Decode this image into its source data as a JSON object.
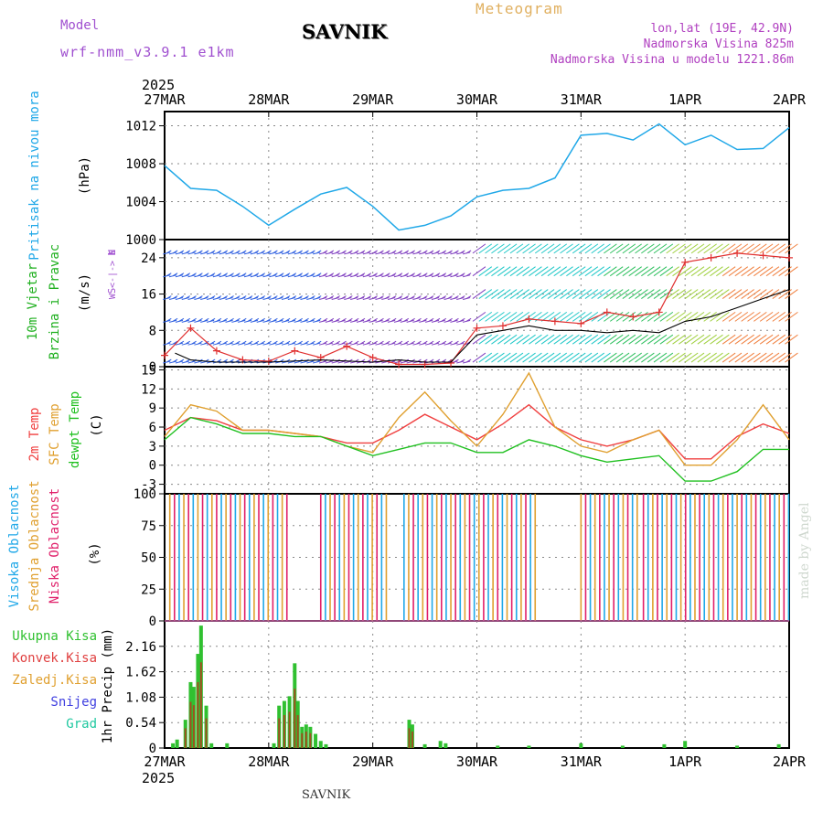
{
  "header": {
    "model_label": "Model",
    "model_name": "wrf-nmm_v3.9.1 e1km",
    "station": "SAVNIK",
    "meteogram": "Meteogram",
    "lonlat": "lon,lat (19E, 42.9N)",
    "elevation": "Nadmorska Visina 825m",
    "elevation_model": "Nadmorska Visina u modelu 1221.86m"
  },
  "footer": {
    "station": "SAVNIK",
    "made_by": "made by Angel"
  },
  "x_axis": {
    "year": "2025",
    "ticks": [
      "27MAR",
      "28MAR",
      "29MAR",
      "30MAR",
      "31MAR",
      "1APR",
      "2APR"
    ]
  },
  "colors": {
    "pressure": "#20a8e8",
    "temp2m": "#f04040",
    "sfc_temp": "#e0a030",
    "dewpt": "#20c020",
    "high_cloud": "#20a8e8",
    "mid_cloud": "#e0a030",
    "low_cloud": "#e0206a",
    "total_precip": "#30c030",
    "conv_precip": "#e04040",
    "snow": "#4040e0"
  },
  "chart_data": [
    {
      "type": "line",
      "panel": "pressure",
      "ylabel_main": "Pritisak na nivou mora",
      "ylabel_unit": "(hPa)",
      "ylim": [
        1000,
        1013.5
      ],
      "yticks": [
        "1000",
        "1004",
        "1008",
        "1012"
      ],
      "grid": true,
      "x_days": [
        0,
        0.25,
        0.5,
        0.75,
        1,
        1.25,
        1.5,
        1.75,
        2,
        2.25,
        2.5,
        2.75,
        3,
        3.25,
        3.5,
        3.75,
        4,
        4.25,
        4.5,
        4.75,
        5,
        5.25,
        5.5,
        5.75,
        6
      ],
      "values": [
        1007.8,
        1005.4,
        1005.2,
        1003.5,
        1001.5,
        1003.2,
        1004.8,
        1005.5,
        1003.5,
        1001.0,
        1001.5,
        1002.5,
        1004.5,
        1005.2,
        1005.4,
        1006.5,
        1011.0,
        1011.2,
        1010.5,
        1012.2,
        1010.0,
        1011.0,
        1009.5,
        1009.6,
        1011.8
      ]
    },
    {
      "type": "line",
      "panel": "wind",
      "ylabel_main": "10m Vjetar",
      "ylabel_sub": "Brzina i Pravac",
      "ylabel_unit": "(m/s)",
      "compass_top": "N",
      "compass_side": "W <-|-> E",
      "compass_bottom": "S",
      "ylim": [
        0,
        28
      ],
      "yticks": [
        "0",
        "8",
        "16",
        "24"
      ],
      "grid": true,
      "series": [
        {
          "name": "gust",
          "x_days": [
            0,
            0.25,
            0.5,
            0.75,
            1,
            1.25,
            1.5,
            1.75,
            2,
            2.25,
            2.5,
            2.75,
            3,
            3.25,
            3.5,
            3.75,
            4,
            4.25,
            4.5,
            4.75,
            5,
            5.25,
            5.5,
            5.75,
            6
          ],
          "values": [
            2.5,
            8.5,
            3.5,
            1.5,
            1.2,
            3.5,
            2.0,
            4.5,
            2.0,
            0.5,
            0.5,
            0.8,
            8.5,
            9.0,
            10.5,
            10.0,
            9.5,
            12.0,
            11.0,
            12.0,
            23.0,
            24.0,
            25.0,
            24.5,
            24.0
          ]
        },
        {
          "name": "mean",
          "x_days": [
            0.1,
            0.25,
            0.5,
            1.0,
            1.5,
            2.0,
            2.25,
            2.5,
            2.75,
            3.0,
            3.25,
            3.5,
            3.75,
            4.0,
            4.25,
            4.5,
            4.75,
            5.0,
            5.25,
            5.5,
            5.75,
            6
          ],
          "values": [
            3,
            1.5,
            1,
            1,
            1.5,
            1,
            1.5,
            1,
            1,
            7,
            8,
            9,
            8,
            8,
            7.5,
            8,
            7.5,
            10,
            11,
            13,
            15,
            17
          ]
        }
      ]
    },
    {
      "type": "line",
      "panel": "temperature",
      "ylabel_main": "2m Temp",
      "ylabel_sub": "SFC Temp",
      "ylabel_sub2": "dewpt Temp",
      "ylabel_unit": "(C)",
      "ylim": [
        -4.5,
        15.5
      ],
      "yticks": [
        "-3",
        "0",
        "3",
        "6",
        "9",
        "12",
        "15"
      ],
      "grid": true,
      "series": [
        {
          "name": "2m Temp",
          "x_days": [
            0,
            0.25,
            0.5,
            0.75,
            1,
            1.25,
            1.5,
            1.75,
            2,
            2.25,
            2.5,
            2.75,
            3,
            3.25,
            3.5,
            3.75,
            4,
            4.25,
            4.5,
            4.75,
            5,
            5.25,
            5.5,
            5.75,
            6
          ],
          "values": [
            5.5,
            7.5,
            7.0,
            5.5,
            5.5,
            5.0,
            4.5,
            3.5,
            3.5,
            5.5,
            8.0,
            6.0,
            4.0,
            6.5,
            9.5,
            6.0,
            4.0,
            3.0,
            4.0,
            5.5,
            1.0,
            1.0,
            4.5,
            6.5,
            5.0
          ]
        },
        {
          "name": "SFC Temp",
          "x_days": [
            0,
            0.25,
            0.5,
            0.75,
            1,
            1.25,
            1.5,
            1.75,
            2,
            2.25,
            2.5,
            2.75,
            3,
            3.25,
            3.5,
            3.75,
            4,
            4.25,
            4.5,
            4.75,
            5,
            5.25,
            5.5,
            5.75,
            6
          ],
          "values": [
            4.5,
            9.5,
            8.5,
            5.5,
            5.5,
            5.0,
            4.5,
            3.0,
            2.0,
            7.5,
            11.5,
            7.0,
            3.0,
            8.0,
            14.5,
            6.0,
            3.0,
            2.0,
            4.0,
            5.5,
            0.0,
            0.0,
            4.0,
            9.5,
            4.0
          ]
        },
        {
          "name": "dewpt Temp",
          "x_days": [
            0,
            0.25,
            0.5,
            0.75,
            1,
            1.25,
            1.5,
            1.75,
            2,
            2.25,
            2.5,
            2.75,
            3,
            3.25,
            3.5,
            3.75,
            4,
            4.25,
            4.5,
            4.75,
            5,
            5.25,
            5.5,
            5.75,
            6
          ],
          "values": [
            4.0,
            7.5,
            6.5,
            5.0,
            5.0,
            4.5,
            4.5,
            3.0,
            1.5,
            2.5,
            3.5,
            3.5,
            2.0,
            2.0,
            4.0,
            3.0,
            1.5,
            0.5,
            1.0,
            1.5,
            -2.5,
            -2.5,
            -1.0,
            2.5,
            2.5
          ]
        }
      ]
    },
    {
      "type": "bar",
      "panel": "clouds",
      "ylabel_main": "Visoka Oblacnost",
      "ylabel_sub": "Srednja Oblacnost",
      "ylabel_sub2": "Niska Oblacnost",
      "ylabel_unit": "(%)",
      "ylim": [
        0,
        100
      ],
      "yticks": [
        "0",
        "25",
        "50",
        "75",
        "100"
      ],
      "grid": true,
      "spans_days": [
        [
          0.05,
          1.2
        ],
        [
          1.5,
          2.15
        ],
        [
          2.3,
          3.6
        ],
        [
          4.0,
          4.55
        ],
        [
          4.6,
          6.0
        ]
      ]
    },
    {
      "type": "bar",
      "panel": "precipitation",
      "legend": [
        "Ukupna Kisa",
        "Konvek.Kisa",
        "Zaledj.Kisa",
        "Snijeg",
        "Grad"
      ],
      "ylabel_unit": "1hr Precip (mm)",
      "ylim": [
        0,
        2.7
      ],
      "yticks": [
        "0",
        "0.54",
        "1.08",
        "1.62",
        "2.16"
      ],
      "grid": true,
      "x_days": [
        0.08,
        0.12,
        0.2,
        0.25,
        0.28,
        0.32,
        0.35,
        0.4,
        0.45,
        0.6,
        1.05,
        1.1,
        1.15,
        1.2,
        1.25,
        1.28,
        1.32,
        1.36,
        1.4,
        1.45,
        1.5,
        1.55,
        2.35,
        2.38,
        2.5,
        2.65,
        2.7,
        3.2,
        3.5,
        4.0,
        4.4,
        4.8,
        5.0,
        5.5,
        5.9
      ],
      "values": [
        0.1,
        0.18,
        0.6,
        1.4,
        1.3,
        2.0,
        2.6,
        0.9,
        0.1,
        0.1,
        0.1,
        0.9,
        1.0,
        1.1,
        1.8,
        1.0,
        0.45,
        0.5,
        0.45,
        0.3,
        0.15,
        0.08,
        0.6,
        0.5,
        0.08,
        0.15,
        0.1,
        0.05,
        0.05,
        0.1,
        0.05,
        0.08,
        0.15,
        0.05,
        0.08
      ]
    }
  ]
}
